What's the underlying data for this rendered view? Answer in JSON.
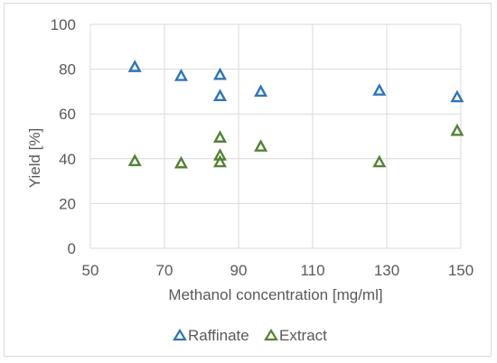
{
  "colors": {
    "raffinate": "#2e75b6",
    "extract": "#548235",
    "grid": "#d9d9d9",
    "text": "#595959"
  },
  "chart_data": {
    "type": "scatter",
    "title": "",
    "xlabel": "Methanol concentration [mg/ml]",
    "ylabel": "Yield [%]",
    "xlim": [
      50,
      150
    ],
    "ylim": [
      0,
      100
    ],
    "xticks": [
      50,
      70,
      90,
      110,
      130,
      150
    ],
    "yticks": [
      0,
      20,
      40,
      60,
      80,
      100
    ],
    "grid": true,
    "legend_position": "bottom",
    "marker": "triangle-open",
    "series": [
      {
        "name": "Raffinate",
        "color": "#2e75b6",
        "points": [
          {
            "x": 62,
            "y": 81
          },
          {
            "x": 74.5,
            "y": 77
          },
          {
            "x": 85,
            "y": 77.5
          },
          {
            "x": 85,
            "y": 68
          },
          {
            "x": 96,
            "y": 70
          },
          {
            "x": 128,
            "y": 70.5
          },
          {
            "x": 149,
            "y": 67.5
          }
        ]
      },
      {
        "name": "Extract",
        "color": "#548235",
        "points": [
          {
            "x": 62,
            "y": 39
          },
          {
            "x": 74.5,
            "y": 38
          },
          {
            "x": 85,
            "y": 49.5
          },
          {
            "x": 85,
            "y": 41.5
          },
          {
            "x": 85,
            "y": 38.5
          },
          {
            "x": 96,
            "y": 45.5
          },
          {
            "x": 128,
            "y": 38.5
          },
          {
            "x": 149,
            "y": 52.5
          }
        ]
      }
    ]
  }
}
